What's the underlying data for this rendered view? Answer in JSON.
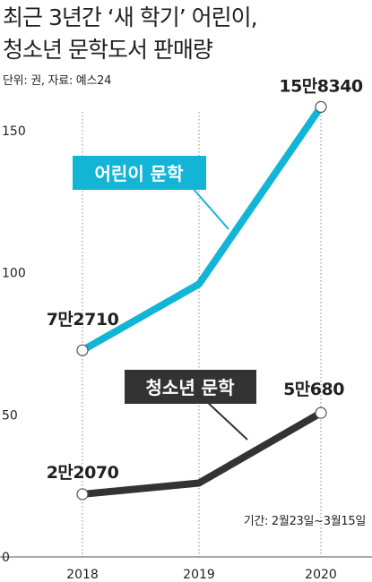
{
  "header": {
    "title_line1": "최근 3년간 ‘새 학기’ 어린이,",
    "title_line2": "청소년 문학도서 판매량",
    "unit_source": "단위: 권, 자료: 예스24",
    "period": "기간: 2월23일~3월15일"
  },
  "colors": {
    "children": "#12b5d6",
    "youth": "#333333",
    "axis": "#555555"
  },
  "chart_data": {
    "type": "line",
    "x": [
      "2018",
      "2019",
      "2020"
    ],
    "y_ticks": [
      "0",
      "50",
      "100",
      "150"
    ],
    "ylim": [
      0,
      160000
    ],
    "series": [
      {
        "name": "어린이 문학",
        "values": [
          72710,
          96000,
          158340
        ],
        "labels": [
          "7만2710",
          "",
          "15만8340"
        ]
      },
      {
        "name": "청소년 문학",
        "values": [
          22070,
          26000,
          50680
        ],
        "labels": [
          "2만2070",
          "",
          "5만680"
        ]
      }
    ]
  }
}
